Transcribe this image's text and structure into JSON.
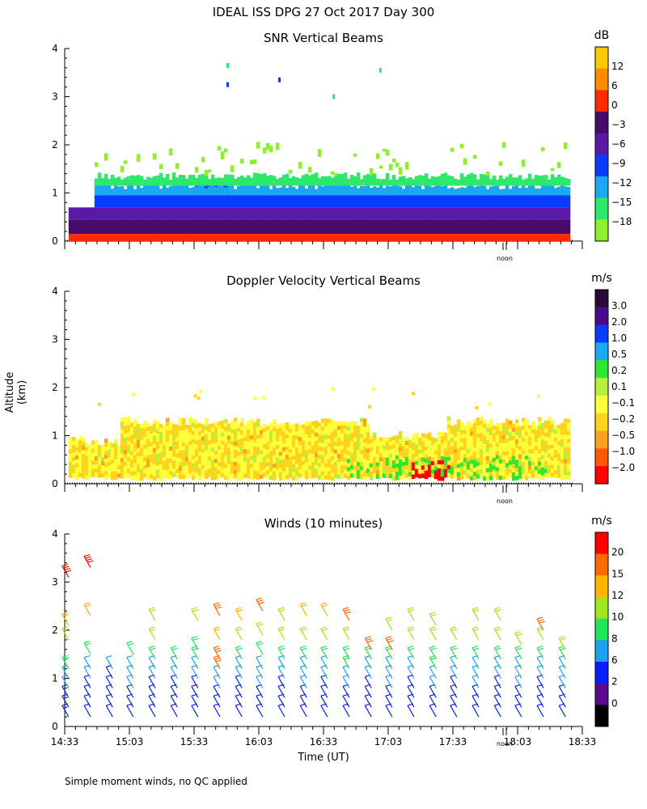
{
  "figure_title": "IDEAL ISS DPG  27 Oct 2017 Day 300",
  "footnote": "Simple moment winds, no QC applied",
  "axes": {
    "ylabel": "Altitude (km)",
    "xlabel": "Time (UT)",
    "x_tick_labels": [
      "14:33",
      "15:03",
      "15:33",
      "16:03",
      "16:33",
      "17:03",
      "17:33",
      "18:03",
      "18:33"
    ],
    "x_range_hours_utc": [
      14.55,
      18.55
    ],
    "y_tick_labels": [
      "0",
      "1",
      "2",
      "3",
      "4"
    ],
    "y_range_km": [
      0,
      4
    ],
    "noon_label": "noon",
    "noon_time_utc": 17.95
  },
  "chart_data": [
    {
      "type": "heatmap",
      "title": "SNR Vertical Beams",
      "colorbar_unit": "dB",
      "colorbar_labels": [
        "12",
        "6",
        "0",
        "−3",
        "−6",
        "−9",
        "−12",
        "−15",
        "−18"
      ],
      "colorbar_colors": [
        "#ffc800",
        "#ff8c00",
        "#ff2a00",
        "#4a0a6a",
        "#5a1aa8",
        "#0a3cff",
        "#1aa8f0",
        "#2ee86a",
        "#8cf02a"
      ],
      "data_extent_time_utc": [
        14.58,
        18.45
      ],
      "layers_km": [
        {
          "bottom": 0.0,
          "top": 0.15,
          "level": "0"
        },
        {
          "bottom": 0.15,
          "top": 0.45,
          "level": "−3"
        },
        {
          "bottom": 0.45,
          "top": 0.7,
          "level": "−6"
        },
        {
          "bottom": 0.7,
          "top": 0.95,
          "level": "−9"
        },
        {
          "bottom": 0.95,
          "top": 1.15,
          "level": "−12"
        },
        {
          "bottom": 1.15,
          "top": 1.35,
          "level": "−15"
        },
        {
          "bottom": 1.35,
          "top": 2.0,
          "level": "−18"
        }
      ]
    },
    {
      "type": "heatmap",
      "title": "Doppler Velocity Vertical Beams",
      "colorbar_unit": "m/s",
      "colorbar_labels": [
        "3.0",
        "2.0",
        "1.0",
        "0.5",
        "0.2",
        "0.1",
        "−0.1",
        "−0.2",
        "−0.5",
        "−1.0",
        "−2.0"
      ],
      "colorbar_colors": [
        "#2a0a3a",
        "#4a0a8a",
        "#0a3cff",
        "#1aa8f0",
        "#2ee82e",
        "#b4f03c",
        "#ffff3c",
        "#ffd21e",
        "#ffa01e",
        "#ff5a00",
        "#ff0000"
      ],
      "data_extent_time_utc": [
        14.58,
        18.45
      ],
      "dominant_level": "−0.1",
      "secondary_level": "−0.2",
      "data_top_km": 1.4
    },
    {
      "type": "wind_barbs",
      "title": "Winds (10 minutes)",
      "colorbar_unit": "m/s",
      "colorbar_labels": [
        "20",
        "15",
        "12",
        "10",
        "8",
        "6",
        "2",
        "0"
      ],
      "colorbar_colors": [
        "#ff0000",
        "#ff6a00",
        "#ffb400",
        "#a0e61e",
        "#1ee65a",
        "#1ea0f0",
        "#0a1eff",
        "#5a0a8a",
        "#000000"
      ],
      "profile_interval_minutes": 10,
      "profile_times_utc": [
        14.58,
        14.75,
        14.92,
        15.08,
        15.25,
        15.42,
        15.58,
        15.75,
        15.92,
        16.08,
        16.25,
        16.42,
        16.58,
        16.75,
        16.92,
        17.08,
        17.25,
        17.42,
        17.58,
        17.75,
        17.92,
        18.08,
        18.25,
        18.42
      ],
      "profiles": [
        {
          "levels_km": [
            0.2,
            0.4,
            0.6,
            0.8,
            1.0,
            1.2,
            1.8,
            2.1,
            3.1
          ],
          "speeds": [
            4,
            5,
            5,
            6,
            7,
            8,
            10,
            12,
            20
          ]
        },
        {
          "levels_km": [
            0.2,
            0.4,
            0.6,
            0.8,
            1.0,
            1.2,
            1.5,
            2.3,
            3.3
          ],
          "speeds": [
            3,
            4,
            5,
            5,
            6,
            6,
            9,
            12,
            20
          ]
        },
        {
          "levels_km": [
            0.2,
            0.4,
            0.6,
            0.8,
            1.0,
            1.2
          ],
          "speeds": [
            2,
            3,
            5,
            5,
            5,
            6
          ]
        },
        {
          "levels_km": [
            0.2,
            0.4,
            0.6,
            0.8,
            1.0,
            1.2,
            1.5
          ],
          "speeds": [
            2,
            4,
            5,
            6,
            6,
            7,
            8
          ]
        },
        {
          "levels_km": [
            0.2,
            0.4,
            0.6,
            0.8,
            1.0,
            1.2,
            1.4,
            1.8,
            2.2
          ],
          "speeds": [
            3,
            4,
            5,
            5,
            6,
            7,
            8,
            10,
            10
          ]
        },
        {
          "levels_km": [
            0.2,
            0.4,
            0.6,
            0.8,
            1.0,
            1.2,
            1.4
          ],
          "speeds": [
            3,
            4,
            5,
            5,
            6,
            6,
            8
          ]
        },
        {
          "levels_km": [
            0.2,
            0.4,
            0.6,
            0.8,
            1.0,
            1.2,
            1.4,
            1.6,
            2.2
          ],
          "speeds": [
            3,
            4,
            5,
            5,
            6,
            7,
            8,
            9,
            10
          ]
        },
        {
          "levels_km": [
            0.2,
            0.4,
            0.6,
            0.8,
            1.0,
            1.2,
            1.4,
            1.8,
            2.3
          ],
          "speeds": [
            3,
            4,
            5,
            6,
            6,
            15,
            17,
            12,
            15
          ]
        },
        {
          "levels_km": [
            0.2,
            0.4,
            0.6,
            0.8,
            1.0,
            1.2,
            1.4,
            1.8,
            2.2
          ],
          "speeds": [
            3,
            4,
            5,
            5,
            6,
            7,
            8,
            10,
            12
          ]
        },
        {
          "levels_km": [
            0.2,
            0.4,
            0.6,
            0.8,
            1.0,
            1.2,
            1.5,
            1.9,
            2.4
          ],
          "speeds": [
            3,
            4,
            5,
            6,
            6,
            7,
            8,
            10,
            15
          ]
        },
        {
          "levels_km": [
            0.2,
            0.4,
            0.6,
            0.8,
            1.0,
            1.2,
            1.4,
            1.8,
            2.2
          ],
          "speeds": [
            3,
            4,
            5,
            5,
            6,
            7,
            8,
            10,
            10
          ]
        },
        {
          "levels_km": [
            0.2,
            0.4,
            0.6,
            0.8,
            1.0,
            1.2,
            1.4,
            1.8,
            2.3
          ],
          "speeds": [
            3,
            4,
            5,
            6,
            6,
            7,
            8,
            10,
            12
          ]
        },
        {
          "levels_km": [
            0.2,
            0.4,
            0.6,
            0.8,
            1.0,
            1.2,
            1.4,
            1.8,
            2.3
          ],
          "speeds": [
            3,
            4,
            5,
            5,
            6,
            7,
            8,
            10,
            12
          ]
        },
        {
          "levels_km": [
            0.2,
            0.4,
            0.6,
            0.8,
            1.0,
            1.2,
            1.4,
            1.8,
            2.2
          ],
          "speeds": [
            3,
            4,
            5,
            6,
            6,
            8,
            8,
            10,
            17
          ]
        },
        {
          "levels_km": [
            0.2,
            0.4,
            0.6,
            0.8,
            1.0,
            1.2,
            1.4,
            1.6
          ],
          "speeds": [
            3,
            4,
            5,
            5,
            6,
            7,
            8,
            15
          ]
        },
        {
          "levels_km": [
            0.2,
            0.4,
            0.6,
            0.8,
            1.0,
            1.2,
            1.4,
            1.6,
            2.0
          ],
          "speeds": [
            3,
            4,
            5,
            6,
            6,
            7,
            8,
            17,
            10
          ]
        },
        {
          "levels_km": [
            0.2,
            0.4,
            0.6,
            0.8,
            1.0,
            1.2,
            1.4,
            1.8,
            2.2
          ],
          "speeds": [
            3,
            4,
            5,
            5,
            6,
            7,
            8,
            10,
            10
          ]
        },
        {
          "levels_km": [
            0.2,
            0.4,
            0.6,
            0.8,
            1.0,
            1.2,
            1.4,
            1.8,
            2.1
          ],
          "speeds": [
            3,
            4,
            5,
            6,
            7,
            8,
            8,
            10,
            10
          ]
        },
        {
          "levels_km": [
            0.2,
            0.4,
            0.6,
            0.8,
            1.0,
            1.2,
            1.4,
            1.8
          ],
          "speeds": [
            3,
            4,
            5,
            5,
            6,
            7,
            8,
            10
          ]
        },
        {
          "levels_km": [
            0.2,
            0.4,
            0.6,
            0.8,
            1.0,
            1.2,
            1.4,
            1.8,
            2.2
          ],
          "speeds": [
            3,
            4,
            5,
            6,
            6,
            7,
            8,
            10,
            10
          ]
        },
        {
          "levels_km": [
            0.2,
            0.4,
            0.6,
            0.8,
            1.0,
            1.2,
            1.4,
            1.8,
            2.2
          ],
          "speeds": [
            3,
            4,
            5,
            5,
            6,
            7,
            8,
            10,
            10
          ]
        },
        {
          "levels_km": [
            0.2,
            0.4,
            0.6,
            0.8,
            1.0,
            1.2,
            1.4,
            1.7
          ],
          "speeds": [
            3,
            4,
            5,
            6,
            6,
            7,
            8,
            10
          ]
        },
        {
          "levels_km": [
            0.2,
            0.4,
            0.6,
            0.8,
            1.0,
            1.2,
            1.4,
            1.8,
            2.0
          ],
          "speeds": [
            3,
            4,
            5,
            5,
            6,
            7,
            8,
            10,
            17
          ]
        },
        {
          "levels_km": [
            0.2,
            0.4,
            0.6,
            0.8,
            1.0,
            1.2,
            1.4,
            1.6
          ],
          "speeds": [
            3,
            4,
            5,
            6,
            6,
            7,
            8,
            10
          ]
        }
      ]
    }
  ]
}
